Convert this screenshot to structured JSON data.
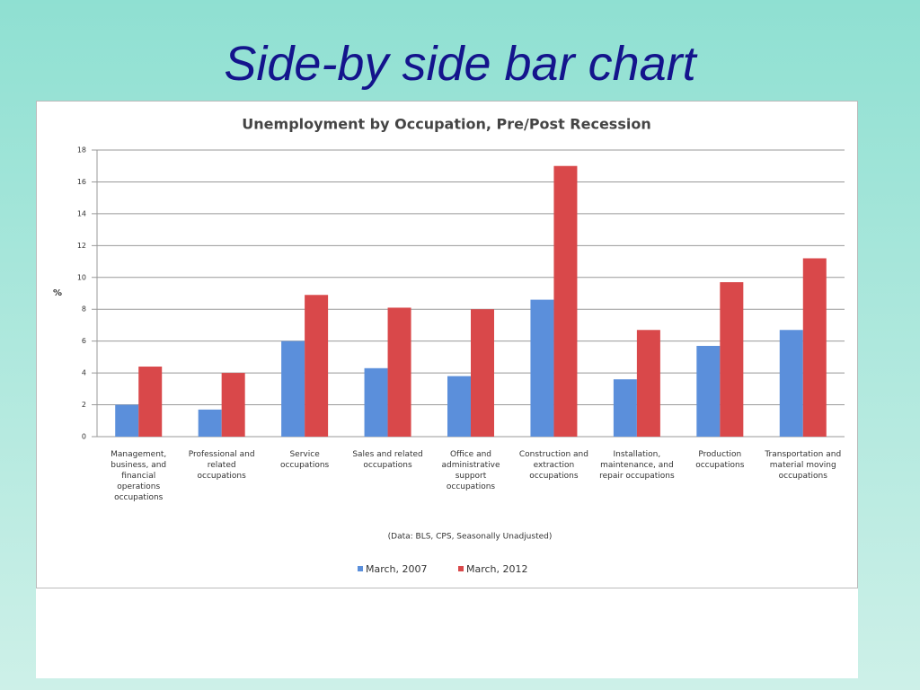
{
  "slide_title": "Side-by side bar chart",
  "chart_data": {
    "type": "bar",
    "title": "Unemployment by Occupation, Pre/Post Recession",
    "y_label": "%",
    "categories": [
      "Management, business, and financial operations occupations",
      "Professional and related occupations",
      "Service occupations",
      "Sales and related occupations",
      "Office and administrative support occupations",
      "Construction and extraction occupations",
      "Installation, maintenance, and repair occupations",
      "Production occupations",
      "Transportation and material moving occupations"
    ],
    "series": [
      {
        "name": "March, 2007",
        "color": "#5b8fdb",
        "values": [
          2.0,
          1.7,
          6.0,
          4.3,
          3.8,
          8.6,
          3.6,
          5.7,
          6.7
        ]
      },
      {
        "name": "March, 2012",
        "color": "#d9484a",
        "values": [
          4.4,
          4.0,
          8.9,
          8.1,
          8.0,
          17.0,
          6.7,
          9.7,
          11.2
        ]
      }
    ],
    "annotation": "(Data: BLS, CPS, Seasonally Unadjusted)",
    "ylim": [
      0,
      18
    ],
    "yticks": [
      0,
      2,
      4,
      6,
      8,
      10,
      12,
      14,
      16,
      18
    ],
    "grid": true,
    "legend": "bottom"
  }
}
